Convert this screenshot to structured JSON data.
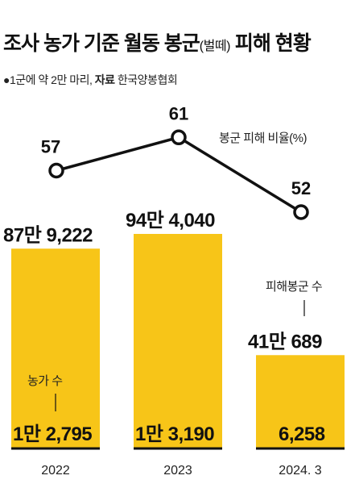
{
  "header": {
    "title_main": "조사 농가 기준 월동 봉군",
    "title_paren": "(벌떼)",
    "title_tail": " 피해 현황",
    "note_prefix": "●1군에 약 2만 마리, ",
    "note_source_label": "자료",
    "note_source": " 한국양봉협회"
  },
  "chart_data": {
    "type": "bar",
    "categories": [
      "2022",
      "2023",
      "2024. 3"
    ],
    "series": [
      {
        "name": "피해봉군 수",
        "values": [
          879222,
          944040,
          410689
        ],
        "labels": [
          "87만 9,222",
          "94만 4,040",
          "41만 689"
        ],
        "color": "#f7c518"
      },
      {
        "name": "농가 수",
        "values": [
          12795,
          13190,
          6258
        ],
        "labels": [
          "1만 2,795",
          "1만 3,190",
          "6,258"
        ]
      },
      {
        "name": "봉군 피해 비율(%)",
        "type": "line",
        "values": [
          57,
          61,
          52
        ],
        "labels": [
          "57",
          "61",
          "52"
        ]
      }
    ],
    "annotations": [
      "봉군 피해 비율(%)",
      "피해봉군 수",
      "농가 수"
    ]
  },
  "colors": {
    "bar": "#f7c518",
    "ink": "#111111"
  }
}
